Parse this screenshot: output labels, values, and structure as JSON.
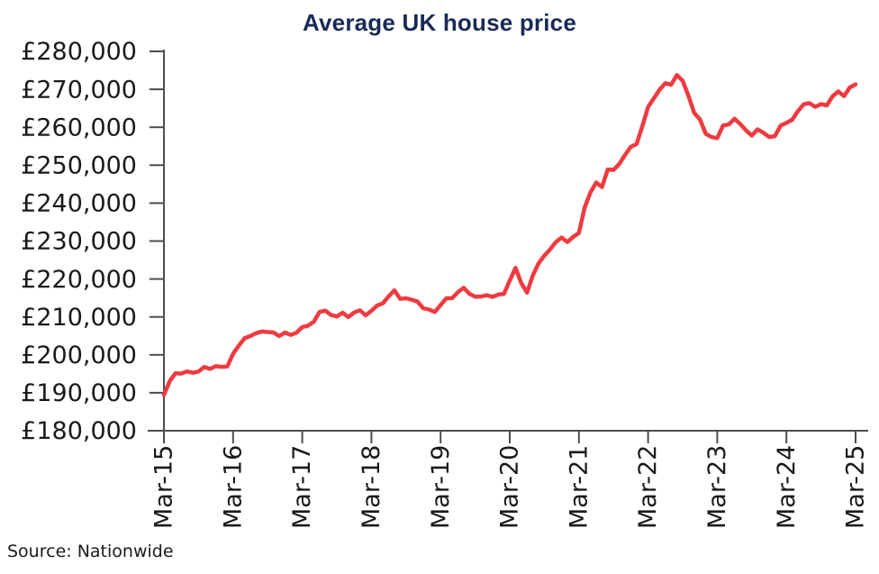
{
  "page": {
    "title": "Average UK house price",
    "source": "Source: Nationwide"
  },
  "colors": {
    "title_navy": "#1a2a57",
    "line_red": "#ef3a40",
    "axis_gray": "#4d4d4d",
    "label_black": "#1a1a1a",
    "background": "#ffffff"
  },
  "chart_data": {
    "type": "line",
    "title": "Average UK house price",
    "source": "Source: Nationwide",
    "xlabel": "",
    "ylabel": "",
    "grid": false,
    "legend_position": "none",
    "line_color": "#ef3a40",
    "ylim": [
      180000,
      280000
    ],
    "y_tick_step": 10000,
    "y_ticks": [
      {
        "value": 280000,
        "label": "£280,000"
      },
      {
        "value": 270000,
        "label": "£270,000"
      },
      {
        "value": 260000,
        "label": "£260,000"
      },
      {
        "value": 250000,
        "label": "£250,000"
      },
      {
        "value": 240000,
        "label": "£240,000"
      },
      {
        "value": 230000,
        "label": "£230,000"
      },
      {
        "value": 220000,
        "label": "£220,000"
      },
      {
        "value": 210000,
        "label": "£210,000"
      },
      {
        "value": 200000,
        "label": "£200,000"
      },
      {
        "value": 190000,
        "label": "£190,000"
      },
      {
        "value": 180000,
        "label": "£180,000"
      }
    ],
    "x_ticks": [
      {
        "index": 0,
        "label": "Mar-15"
      },
      {
        "index": 12,
        "label": "Mar-16"
      },
      {
        "index": 24,
        "label": "Mar-17"
      },
      {
        "index": 36,
        "label": "Mar-18"
      },
      {
        "index": 48,
        "label": "Mar-19"
      },
      {
        "index": 60,
        "label": "Mar-20"
      },
      {
        "index": 72,
        "label": "Mar-21"
      },
      {
        "index": 84,
        "label": "Mar-22"
      },
      {
        "index": 96,
        "label": "Mar-23"
      },
      {
        "index": 108,
        "label": "Mar-24"
      },
      {
        "index": 120,
        "label": "Mar-25"
      }
    ],
    "x_frequency": "monthly",
    "x_range": [
      "Mar-15",
      "Mar-25"
    ],
    "series": [
      {
        "name": "Average UK house price",
        "values": [
          189454,
          193048,
          195166,
          195055,
          195621,
          195279,
          195585,
          196807,
          196305,
          196999,
          196829,
          196930,
          200251,
          202436,
          204368,
          204968,
          205715,
          206145,
          206015,
          205904,
          204947,
          205898,
          205240,
          205846,
          207308,
          207699,
          208711,
          211301,
          211671,
          210495,
          210116,
          211085,
          209988,
          211156,
          211756,
          210402,
          211625,
          213000,
          213618,
          215444,
          217010,
          214745,
          214922,
          214534,
          214044,
          212281,
          211966,
          211304,
          213102,
          214920,
          214946,
          216515,
          217663,
          216096,
          215352,
          215368,
          215734,
          215282,
          215897,
          216092,
          219583,
          222915,
          218902,
          216403,
          220936,
          224123,
          226129,
          227826,
          229721,
          230920,
          229748,
          231061,
          232134,
          238831,
          242832,
          245432,
          244229,
          248857,
          248742,
          250311,
          252687,
          254822,
          255556,
          260230,
          265312,
          267620,
          269914,
          271613,
          271209,
          273751,
          272259,
          268282,
          263788,
          262068,
          258297,
          257406,
          257122,
          260441,
          260736,
          262239,
          260828,
          259153,
          257808,
          259423,
          258557,
          257443,
          257656,
          260420,
          261142,
          261962,
          264249,
          266064,
          266334,
          265375,
          266094,
          265738,
          268144,
          269426,
          268213,
          270493,
          271316
        ]
      }
    ]
  }
}
